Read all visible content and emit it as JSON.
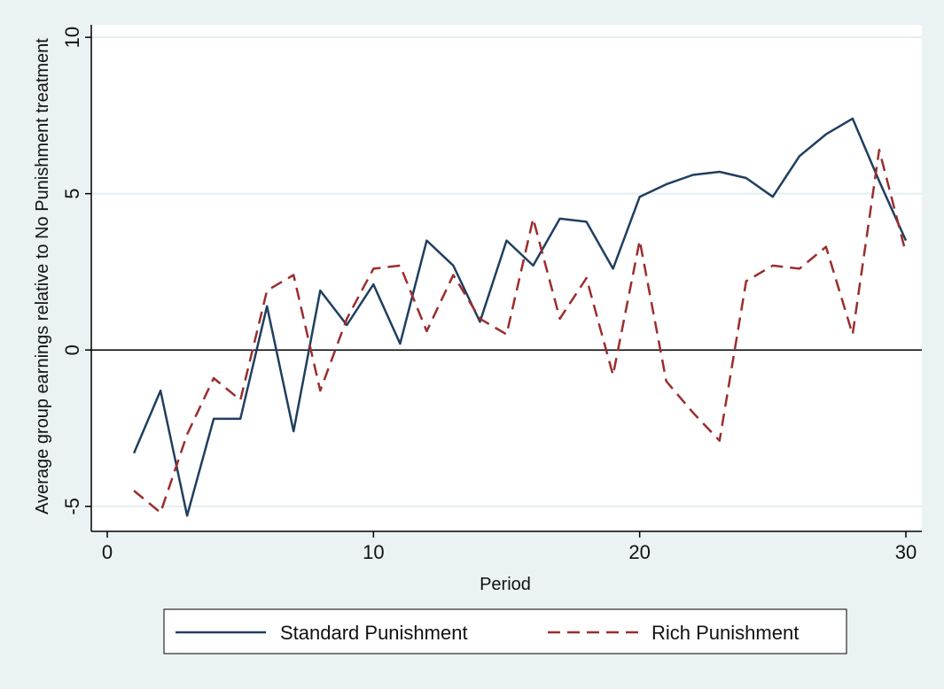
{
  "chart_data": {
    "type": "line",
    "xlabel": "Period",
    "ylabel": "Average group earnings relative to No Punishment treatment",
    "xlim": [
      -0.6,
      30.6
    ],
    "ylim": [
      -5.8,
      10.4
    ],
    "xticks": [
      0,
      10,
      20,
      30
    ],
    "yticks": [
      -5,
      0,
      5,
      10
    ],
    "ygrid": true,
    "reference_line_y": 0,
    "legend_position": "bottom",
    "series": [
      {
        "name": "Standard Punishment",
        "color": "#1f3f5f",
        "dash": "solid",
        "x": [
          1,
          2,
          3,
          4,
          5,
          6,
          7,
          8,
          9,
          10,
          11,
          12,
          13,
          14,
          15,
          16,
          17,
          18,
          19,
          20,
          21,
          22,
          23,
          24,
          25,
          26,
          27,
          28,
          29,
          30
        ],
        "y": [
          -3.3,
          -1.3,
          -5.3,
          -2.2,
          -2.2,
          1.4,
          -2.6,
          1.9,
          0.8,
          2.1,
          0.2,
          3.5,
          2.7,
          0.9,
          3.5,
          2.7,
          4.2,
          4.1,
          2.6,
          4.9,
          5.3,
          5.6,
          5.7,
          5.5,
          4.9,
          6.2,
          6.9,
          7.4,
          5.4,
          3.5
        ]
      },
      {
        "name": "Rich Punishment",
        "color": "#9b2d2d",
        "dash": "dashed",
        "x": [
          1,
          2,
          3,
          4,
          5,
          6,
          7,
          8,
          9,
          10,
          11,
          12,
          13,
          14,
          15,
          16,
          17,
          18,
          19,
          20,
          21,
          22,
          23,
          24,
          25,
          26,
          27,
          28,
          29,
          30
        ],
        "y": [
          -4.5,
          -5.2,
          -2.7,
          -0.9,
          -1.6,
          1.9,
          2.4,
          -1.3,
          1.0,
          2.6,
          2.7,
          0.6,
          2.4,
          1.0,
          0.5,
          4.2,
          1.0,
          2.3,
          -0.8,
          3.5,
          -1.0,
          -2.0,
          -2.9,
          2.2,
          2.7,
          2.6,
          3.3,
          0.5,
          6.4,
          3.1
        ]
      }
    ]
  }
}
